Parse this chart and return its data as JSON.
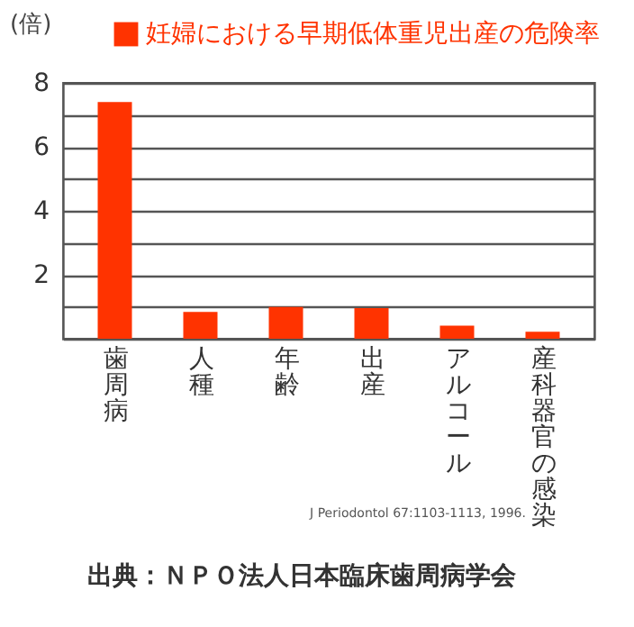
{
  "chart_data": {
    "type": "bar",
    "ylabel": "(倍)",
    "categories": [
      "歯周病",
      "人種",
      "年齢",
      "出産",
      "アルコール",
      "産科器官の感染"
    ],
    "series": [
      {
        "name": "妊婦における早期低体重児出産の危険率",
        "color": "#ff3300",
        "values": [
          7.4,
          0.84,
          0.99,
          0.96,
          0.41,
          0.22
        ]
      }
    ],
    "ylim": [
      0,
      8
    ],
    "yticks": [
      {
        "value": 0,
        "label": null
      },
      {
        "value": 1,
        "label": null
      },
      2,
      {
        "value": 3,
        "label": null
      },
      4,
      {
        "value": 5,
        "label": null
      },
      6,
      {
        "value": 7,
        "label": null
      },
      8
    ],
    "grid": "y",
    "legend": "top",
    "annotations": [
      "J Periodontol 67:1103-1113, 1996.",
      "出典：ＮＰＯ法人日本臨床歯周病学会"
    ]
  }
}
